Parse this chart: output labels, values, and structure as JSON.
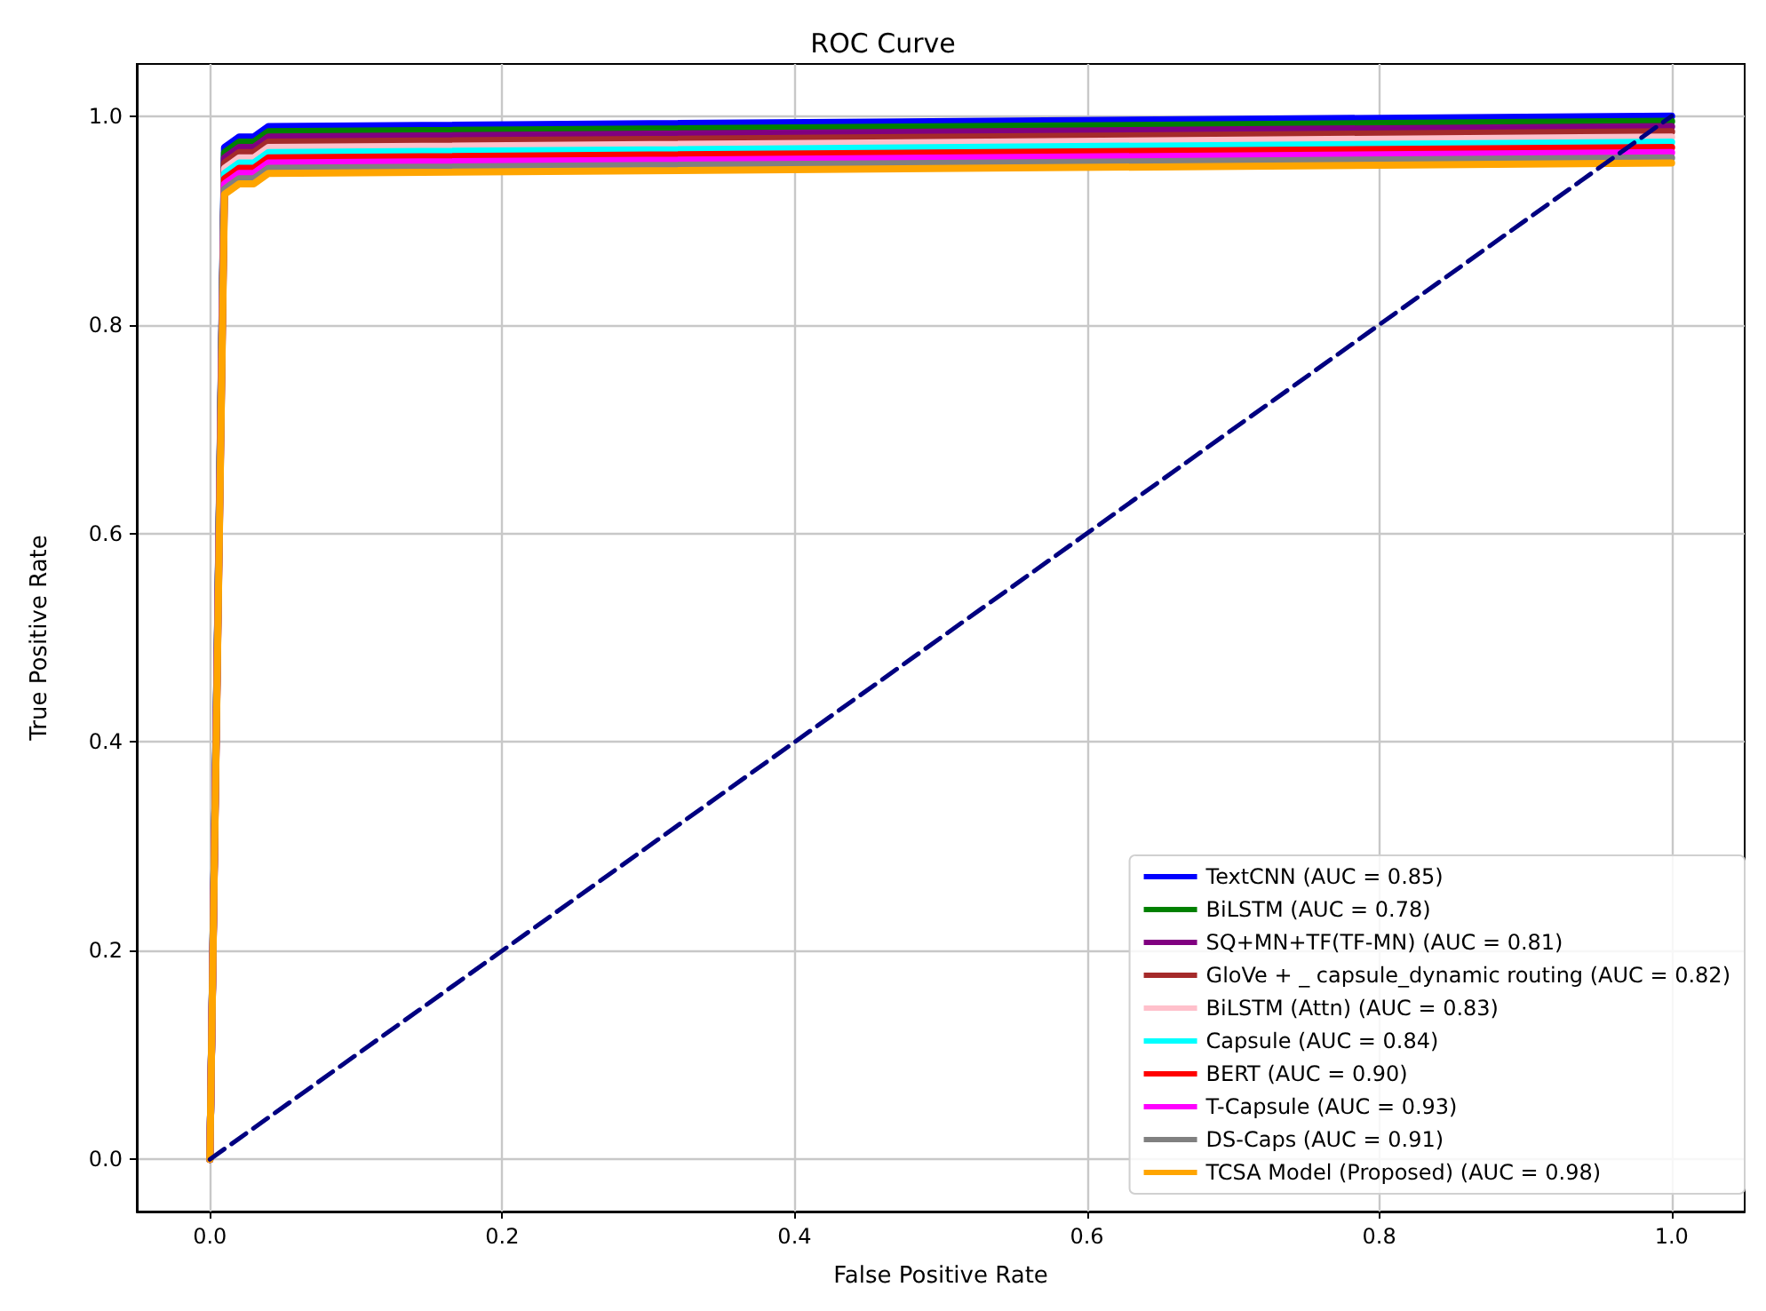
{
  "chart_data": {
    "type": "line",
    "title": "ROC Curve",
    "xlabel": "False Positive Rate",
    "ylabel": "True Positive Rate",
    "x": [
      0,
      0.01,
      0.02,
      0.03,
      0.04,
      1
    ],
    "series": [
      {
        "name": "TextCNN (AUC = 0.85)",
        "color": "#0000ff",
        "values": [
          0,
          0.97,
          0.98,
          0.98,
          0.99,
          1.0
        ]
      },
      {
        "name": "BiLSTM (AUC = 0.78)",
        "color": "#008000",
        "values": [
          0,
          0.965,
          0.975,
          0.975,
          0.985,
          0.995
        ]
      },
      {
        "name": "SQ+MN+TF(TF-MN) (AUC = 0.81)",
        "color": "#800080",
        "values": [
          0,
          0.96,
          0.97,
          0.97,
          0.98,
          0.99
        ]
      },
      {
        "name": "GloVe + _ capsule_dynamic routing (AUC = 0.82)",
        "color": "#a52a2a",
        "values": [
          0,
          0.955,
          0.965,
          0.965,
          0.975,
          0.985
        ]
      },
      {
        "name": "BiLSTM (Attn) (AUC = 0.83)",
        "color": "#ffc0cb",
        "values": [
          0,
          0.95,
          0.96,
          0.96,
          0.97,
          0.98
        ]
      },
      {
        "name": "Capsule (AUC = 0.84)",
        "color": "#00ffff",
        "values": [
          0,
          0.945,
          0.955,
          0.955,
          0.965,
          0.975
        ]
      },
      {
        "name": "BERT (AUC = 0.90)",
        "color": "#ff0000",
        "values": [
          0,
          0.94,
          0.95,
          0.95,
          0.96,
          0.97
        ]
      },
      {
        "name": "T-Capsule (AUC = 0.93)",
        "color": "#ff00ff",
        "values": [
          0,
          0.935,
          0.945,
          0.945,
          0.955,
          0.965
        ]
      },
      {
        "name": "DS-Caps (AUC = 0.91)",
        "color": "#808080",
        "values": [
          0,
          0.93,
          0.94,
          0.94,
          0.95,
          0.96
        ]
      },
      {
        "name": "TCSA Model (Proposed) (AUC = 0.98)",
        "color": "#ffa500",
        "values": [
          0,
          0.925,
          0.935,
          0.935,
          0.945,
          0.955
        ]
      },
      {
        "color": "#000080",
        "x": [
          0,
          1
        ],
        "values": [
          0,
          1
        ],
        "line_style": "dashed"
      }
    ],
    "xlim": [
      -0.05,
      1.05
    ],
    "ylim": [
      -0.05,
      1.05
    ],
    "xticks": [
      {
        "value": 0,
        "label": "0.0"
      },
      {
        "value": 0.2,
        "label": "0.2"
      },
      {
        "value": 0.4,
        "label": "0.4"
      },
      {
        "value": 0.6,
        "label": "0.6"
      },
      {
        "value": 0.8,
        "label": "0.8"
      },
      {
        "value": 1,
        "label": "1.0"
      }
    ],
    "yticks": [
      {
        "value": 0,
        "label": "0.0"
      },
      {
        "value": 0.2,
        "label": "0.2"
      },
      {
        "value": 0.4,
        "label": "0.4"
      },
      {
        "value": 0.6,
        "label": "0.6"
      },
      {
        "value": 0.8,
        "label": "0.8"
      },
      {
        "value": 1,
        "label": "1.0"
      }
    ],
    "grid": true,
    "legend": "bottom right",
    "marker": "none",
    "line_style": "solid"
  }
}
